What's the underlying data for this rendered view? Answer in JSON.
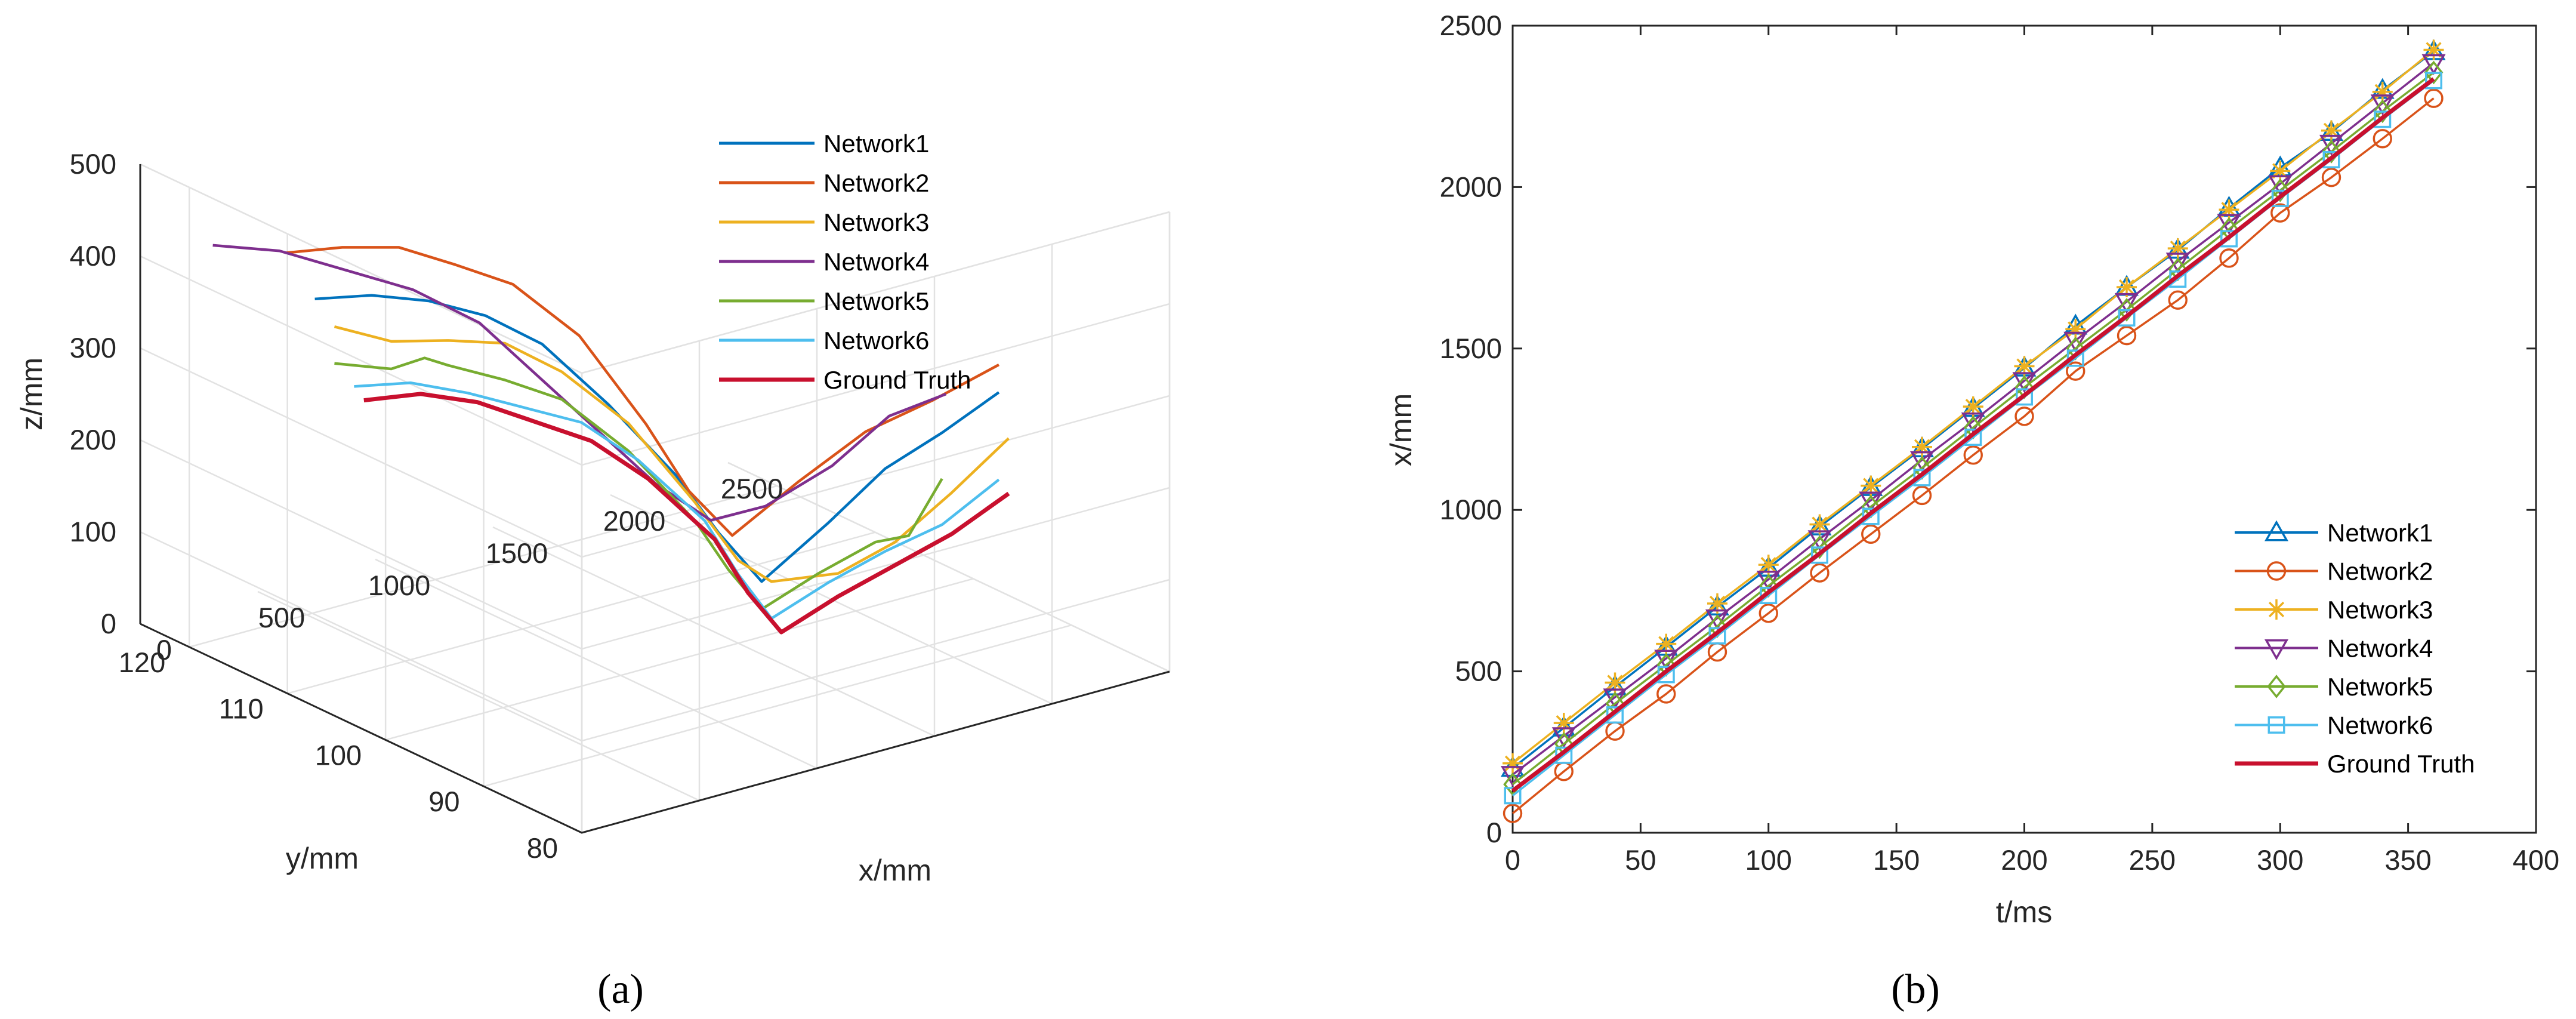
{
  "chart_data": [
    {
      "panel": "a",
      "type": "line",
      "projection": "3d",
      "caption": "(a)",
      "xlabel": "x/mm",
      "ylabel": "y/mm",
      "zlabel": "z/mm",
      "xlim": [
        0,
        2500
      ],
      "ylim": [
        80,
        125
      ],
      "zlim": [
        0,
        500
      ],
      "xticks": [
        "0",
        "500",
        "1000",
        "1500",
        "2000",
        "2500"
      ],
      "yticks": [
        "80",
        "90",
        "100",
        "110",
        "120"
      ],
      "zticks": [
        "0",
        "100",
        "200",
        "300",
        "400",
        "500"
      ],
      "grid": true,
      "legend": "top-right",
      "series": [
        {
          "name": "Network1",
          "color": "#0072bd",
          "x": [
            200,
            400,
            600,
            800,
            1000,
            1200,
            1400,
            1500,
            1600,
            1800,
            2000,
            2200,
            2400
          ],
          "y": [
            112,
            111,
            110,
            109,
            108,
            106,
            104,
            102,
            100,
            98,
            97,
            96,
            95
          ],
          "z": [
            405,
            400,
            385,
            360,
            320,
            250,
            170,
            110,
            60,
            120,
            170,
            200,
            235
          ]
        },
        {
          "name": "Network2",
          "color": "#d95319",
          "x": [
            200,
            400,
            600,
            800,
            1000,
            1200,
            1400,
            1500,
            1600,
            1800,
            2000,
            2200,
            2400
          ],
          "y": [
            115,
            114,
            113,
            112,
            111,
            109,
            107,
            105,
            103,
            101,
            99,
            97,
            95
          ],
          "z": [
            440,
            437,
            428,
            400,
            370,
            310,
            210,
            140,
            95,
            150,
            200,
            230,
            265
          ]
        },
        {
          "name": "Network3",
          "color": "#edb120",
          "x": [
            200,
            400,
            600,
            800,
            1000,
            1200,
            1400,
            1500,
            1600,
            1800,
            2000,
            2200,
            2400
          ],
          "y": [
            110,
            109,
            108,
            107,
            106,
            104,
            102,
            100,
            99,
            97,
            96,
            95,
            94
          ],
          "z": [
            385,
            360,
            352,
            340,
            300,
            240,
            150,
            90,
            65,
            70,
            95,
            140,
            190
          ]
        },
        {
          "name": "Network4",
          "color": "#7e2f8e",
          "x": [
            100,
            300,
            500,
            700,
            900,
            1100,
            1300,
            1400,
            1550,
            1700,
            1900,
            2100,
            2300
          ],
          "y": [
            120,
            118,
            116,
            114,
            112,
            110,
            108,
            106,
            104,
            102,
            100,
            99,
            98
          ],
          "z": [
            430,
            420,
            395,
            370,
            330,
            260,
            190,
            150,
            110,
            125,
            165,
            210,
            225
          ]
        },
        {
          "name": "Network5",
          "color": "#77ac30",
          "x": [
            200,
            400,
            500,
            600,
            800,
            1000,
            1200,
            1400,
            1500,
            1600,
            1800,
            2000,
            2100,
            2200
          ],
          "y": [
            110,
            109,
            108,
            108,
            107,
            106,
            104,
            102,
            101,
            100,
            99,
            98,
            97,
            96
          ],
          "z": [
            345,
            330,
            340,
            325,
            300,
            270,
            210,
            130,
            75,
            30,
            60,
            85,
            90,
            150
          ]
        },
        {
          "name": "Network6",
          "color": "#4dbeee",
          "x": [
            200,
            400,
            600,
            800,
            1000,
            1200,
            1400,
            1500,
            1600,
            1800,
            2000,
            2200,
            2400
          ],
          "y": [
            108,
            107,
            106,
            105,
            104,
            103,
            101,
            100,
            99,
            98,
            97,
            96,
            95
          ],
          "z": [
            330,
            325,
            305,
            280,
            255,
            205,
            135,
            75,
            25,
            55,
            80,
            100,
            140
          ]
        },
        {
          "name": "Ground Truth",
          "color": "#c8102e",
          "x": [
            200,
            400,
            600,
            800,
            1000,
            1200,
            1400,
            1500,
            1600,
            1800,
            2000,
            2200,
            2400
          ],
          "y": [
            107,
            106,
            105,
            104,
            103,
            102,
            100,
            99,
            98,
            97,
            96,
            95,
            94
          ],
          "z": [
            320,
            318,
            300,
            270,
            240,
            190,
            120,
            60,
            15,
            45,
            70,
            95,
            130
          ]
        }
      ]
    },
    {
      "panel": "b",
      "type": "line",
      "caption": "(b)",
      "xlabel": "t/ms",
      "ylabel": "x/mm",
      "xlim": [
        0,
        400
      ],
      "ylim": [
        0,
        2500
      ],
      "xticks": [
        0,
        50,
        100,
        150,
        200,
        250,
        300,
        350,
        400
      ],
      "yticks": [
        0,
        500,
        1000,
        1500,
        2000,
        2500
      ],
      "grid": false,
      "legend": "bottom-right",
      "t": [
        0,
        20,
        40,
        60,
        80,
        100,
        120,
        140,
        160,
        180,
        200,
        220,
        240,
        260,
        280,
        300,
        320,
        340,
        360
      ],
      "series": [
        {
          "name": "Network1",
          "color": "#0072bd",
          "marker": "triangle",
          "values": [
            200,
            325,
            452,
            575,
            700,
            820,
            948,
            1070,
            1190,
            1315,
            1440,
            1570,
            1690,
            1805,
            1935,
            2060,
            2170,
            2300,
            2420
          ]
        },
        {
          "name": "Network2",
          "color": "#d95319",
          "marker": "circle",
          "values": [
            60,
            190,
            315,
            430,
            560,
            680,
            805,
            925,
            1045,
            1170,
            1290,
            1430,
            1540,
            1650,
            1780,
            1920,
            2030,
            2150,
            2275
          ]
        },
        {
          "name": "Network3",
          "color": "#edb120",
          "marker": "asterisk",
          "values": [
            215,
            340,
            465,
            585,
            710,
            830,
            955,
            1075,
            1195,
            1320,
            1445,
            1560,
            1690,
            1810,
            1930,
            2050,
            2175,
            2295,
            2425
          ]
        },
        {
          "name": "Network4",
          "color": "#7e2f8e",
          "marker": "triangle-down",
          "values": [
            180,
            300,
            420,
            540,
            665,
            785,
            910,
            1030,
            1155,
            1275,
            1400,
            1525,
            1645,
            1770,
            1890,
            2010,
            2135,
            2260,
            2385
          ]
        },
        {
          "name": "Network5",
          "color": "#77ac30",
          "marker": "diamond",
          "values": [
            150,
            275,
            400,
            520,
            640,
            765,
            885,
            1010,
            1130,
            1255,
            1380,
            1500,
            1620,
            1745,
            1870,
            1990,
            2110,
            2235,
            2355
          ]
        },
        {
          "name": "Network6",
          "color": "#4dbeee",
          "marker": "square",
          "values": [
            115,
            240,
            365,
            490,
            610,
            735,
            860,
            980,
            1100,
            1225,
            1350,
            1470,
            1595,
            1715,
            1840,
            1965,
            2085,
            2210,
            2330
          ]
        },
        {
          "name": "Ground Truth",
          "color": "#c8102e",
          "marker": "none",
          "values": [
            130,
            250,
            375,
            500,
            620,
            745,
            865,
            990,
            1110,
            1235,
            1355,
            1480,
            1600,
            1725,
            1845,
            1970,
            2090,
            2215,
            2335
          ]
        }
      ]
    }
  ]
}
